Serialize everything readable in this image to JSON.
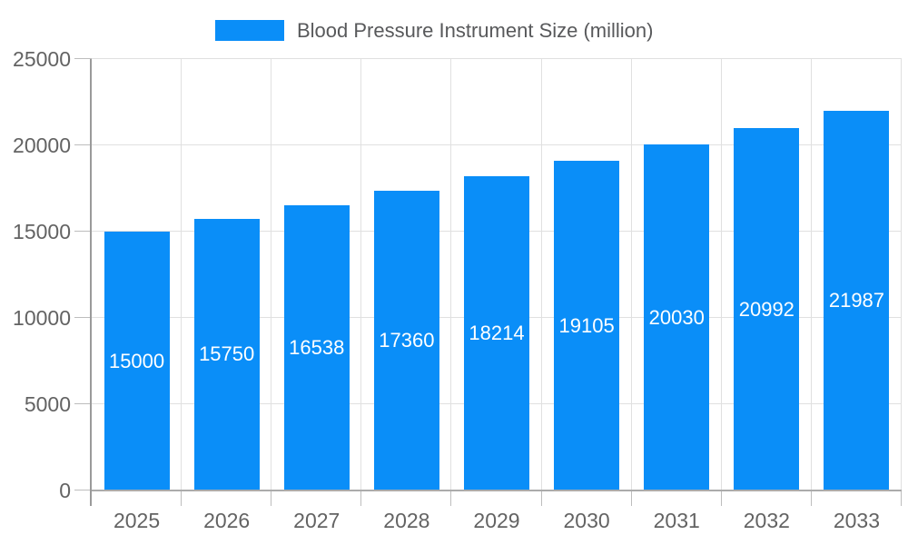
{
  "legend": {
    "label": "Blood Pressure Instrument Size (million)"
  },
  "chart_data": {
    "type": "bar",
    "title": "Blood Pressure Instrument Size (million)",
    "categories": [
      "2025",
      "2026",
      "2027",
      "2028",
      "2029",
      "2030",
      "2031",
      "2032",
      "2033"
    ],
    "series": [
      {
        "name": "Blood Pressure Instrument Size (million)",
        "values": [
          15000,
          15750,
          16538,
          17360,
          18214,
          19105,
          20030,
          20992,
          21987
        ]
      }
    ],
    "bar_value_labels": [
      "15000",
      "15750",
      "16538",
      "17360",
      "18214",
      "19105",
      "20030",
      "20992",
      "21987"
    ],
    "y_ticks": [
      0,
      5000,
      10000,
      15000,
      20000,
      25000
    ],
    "ylim": [
      0,
      25000
    ],
    "xlabel": "",
    "ylabel": "",
    "grid": true,
    "legend_position": "top",
    "colors": {
      "bar": "#0a8ef8",
      "grid": "#e0e0e0",
      "tick": "#bdbdbd",
      "axis_y": "#9a9a9a",
      "axis_x": "#ababab",
      "axis_text": "#636363",
      "title_text": "#58595b",
      "bar_label": "#ffffff",
      "background": "#ffffff"
    }
  }
}
